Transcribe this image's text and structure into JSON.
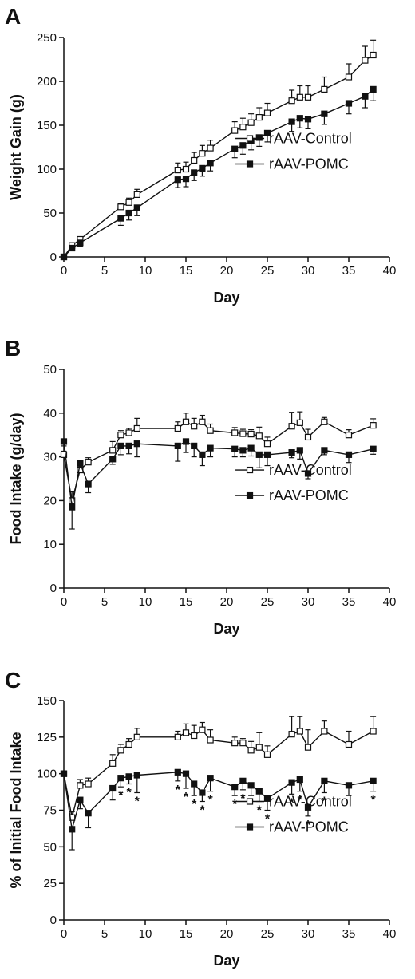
{
  "chart_data": [
    {
      "panel": "A",
      "type": "line",
      "xlabel": "Day",
      "ylabel": "Weight Gain (g)",
      "xlim": [
        0,
        40
      ],
      "ylim": [
        0,
        250
      ],
      "xticks": [
        0,
        5,
        10,
        15,
        20,
        25,
        30,
        35,
        40
      ],
      "yticks": [
        0,
        50,
        100,
        150,
        200,
        250
      ],
      "legend_position": "right",
      "series": [
        {
          "name": "rAAV-Control",
          "marker": "open-square",
          "x": [
            0,
            1,
            2,
            7,
            8,
            9,
            14,
            15,
            16,
            17,
            18,
            21,
            22,
            23,
            24,
            25,
            28,
            29,
            30,
            32,
            35,
            37,
            38
          ],
          "y": [
            0,
            13,
            20,
            57,
            62,
            71,
            99,
            100,
            110,
            118,
            124,
            144,
            148,
            153,
            159,
            164,
            178,
            182,
            182,
            191,
            205,
            224,
            230
          ],
          "err": [
            0,
            3,
            3,
            4,
            5,
            6,
            8,
            8,
            9,
            9,
            9,
            10,
            10,
            10,
            11,
            11,
            12,
            13,
            13,
            14,
            15,
            16,
            17
          ]
        },
        {
          "name": "rAAV-POMC",
          "marker": "filled-square",
          "x": [
            0,
            1,
            2,
            7,
            8,
            9,
            14,
            15,
            16,
            17,
            18,
            21,
            22,
            23,
            24,
            25,
            28,
            29,
            30,
            32,
            35,
            37,
            38
          ],
          "y": [
            0,
            10,
            16,
            44,
            50,
            56,
            88,
            89,
            96,
            101,
            107,
            123,
            127,
            132,
            136,
            141,
            154,
            158,
            157,
            163,
            175,
            183,
            191
          ],
          "err": [
            0,
            3,
            4,
            8,
            8,
            9,
            9,
            9,
            9,
            9,
            9,
            10,
            10,
            10,
            10,
            10,
            11,
            11,
            11,
            12,
            12,
            13,
            13
          ]
        }
      ]
    },
    {
      "panel": "B",
      "type": "line",
      "xlabel": "Day",
      "ylabel": "Food Intake (g/day)",
      "xlim": [
        0,
        40
      ],
      "ylim": [
        0,
        50
      ],
      "xticks": [
        0,
        5,
        10,
        15,
        20,
        25,
        30,
        35,
        40
      ],
      "yticks": [
        0,
        10,
        20,
        30,
        40,
        50
      ],
      "legend_position": "right",
      "series": [
        {
          "name": "rAAV-Control",
          "marker": "open-square",
          "x": [
            0,
            1,
            2,
            3,
            6,
            7,
            8,
            9,
            14,
            15,
            16,
            17,
            18,
            21,
            22,
            23,
            24,
            25,
            28,
            29,
            30,
            32,
            35,
            38
          ],
          "y": [
            30.5,
            20,
            27,
            28.8,
            31.5,
            35,
            35.5,
            36.5,
            36.5,
            38,
            37,
            38,
            36,
            35.5,
            35.3,
            35.2,
            34.8,
            33,
            37,
            37.8,
            34.5,
            38,
            35,
            37.2
          ],
          "err": [
            0.8,
            2,
            1,
            1,
            2,
            1,
            1,
            2.3,
            1.5,
            2,
            1.8,
            1.5,
            1.5,
            1.2,
            1,
            1,
            2,
            1.5,
            3.2,
            2.5,
            1.8,
            1,
            1.2,
            1.5
          ]
        },
        {
          "name": "rAAV-POMC",
          "marker": "filled-square",
          "x": [
            0,
            1,
            2,
            3,
            6,
            7,
            8,
            9,
            14,
            15,
            16,
            17,
            18,
            21,
            22,
            23,
            24,
            25,
            28,
            29,
            30,
            32,
            35,
            38
          ],
          "y": [
            33.5,
            18.5,
            28.5,
            23.8,
            29.5,
            32.5,
            32.5,
            33,
            32.5,
            33.5,
            32.5,
            30.5,
            32,
            31.8,
            31.5,
            32,
            30.5,
            30.5,
            31,
            31.5,
            26.2,
            31.5,
            30.5,
            31.8
          ],
          "err": [
            1,
            5,
            1,
            2,
            1.2,
            2,
            1.8,
            3,
            3.5,
            2.5,
            2.5,
            2.5,
            2,
            1.8,
            1.5,
            1.8,
            3,
            2.5,
            1.2,
            2,
            1.2,
            1,
            1.8,
            1.2
          ]
        }
      ]
    },
    {
      "panel": "C",
      "type": "line",
      "xlabel": "Day",
      "ylabel": "% of Initial Food Intake",
      "xlim": [
        0,
        40
      ],
      "ylim": [
        0,
        150
      ],
      "xticks": [
        0,
        5,
        10,
        15,
        20,
        25,
        30,
        35,
        40
      ],
      "yticks": [
        0,
        25,
        50,
        75,
        100,
        125,
        150
      ],
      "legend_position": "right",
      "significance_marker": "*",
      "significance_days": [
        7,
        8,
        9,
        14,
        15,
        16,
        17,
        18,
        21,
        22,
        23,
        24,
        25,
        28,
        29,
        30,
        32,
        38
      ],
      "series": [
        {
          "name": "rAAV-Control",
          "marker": "open-square",
          "x": [
            0,
            1,
            2,
            3,
            6,
            7,
            8,
            9,
            14,
            15,
            16,
            17,
            18,
            21,
            22,
            23,
            24,
            25,
            28,
            29,
            30,
            32,
            35,
            38
          ],
          "y": [
            100,
            70,
            92,
            93,
            107,
            116,
            120,
            125,
            125,
            128,
            126,
            130,
            123,
            121,
            121,
            116,
            118,
            113,
            127,
            129,
            118,
            129,
            120,
            129
          ],
          "err": [
            0,
            4,
            4,
            4,
            6,
            4,
            4,
            6,
            4,
            6,
            7,
            5,
            7,
            4,
            3,
            6,
            10,
            6,
            12,
            10,
            12,
            7,
            9,
            10
          ]
        },
        {
          "name": "rAAV-POMC",
          "marker": "filled-square",
          "x": [
            0,
            1,
            2,
            3,
            6,
            7,
            8,
            9,
            14,
            15,
            16,
            17,
            18,
            21,
            22,
            23,
            24,
            25,
            28,
            29,
            30,
            32,
            35,
            38
          ],
          "y": [
            100,
            62,
            82,
            73,
            90,
            97,
            98,
            99,
            101,
            100,
            93,
            87,
            97,
            91,
            95,
            92,
            88,
            83,
            94,
            96,
            77,
            95,
            92,
            95
          ],
          "err": [
            0,
            14,
            6,
            10,
            8,
            6,
            5,
            12,
            6,
            10,
            8,
            6,
            9,
            6,
            6,
            7,
            7,
            8,
            8,
            8,
            6,
            8,
            7,
            7
          ]
        }
      ]
    }
  ]
}
